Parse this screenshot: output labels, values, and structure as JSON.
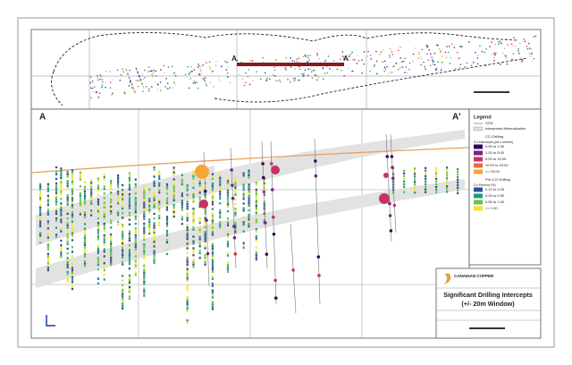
{
  "plan_view": {
    "section_start": "A",
    "section_end": "A'"
  },
  "section": {
    "left_label": "A",
    "right_label": "A'"
  },
  "legend": {
    "title": "Legend",
    "items": [
      "STM",
      "Interpreted Mineralization"
    ],
    "cci": {
      "title": "CCI Drilling",
      "subtitle": "Cu Intercepts (pct x meters)",
      "classes": [
        {
          "label": "0.00 to 1.00",
          "color": "#2d0a5e"
        },
        {
          "label": "1.00 to 5.00",
          "color": "#7b2382"
        },
        {
          "label": "5.00 to 10.00",
          "color": "#c8325e"
        },
        {
          "label": "10.00 to 15.00",
          "color": "#ef6a3c"
        },
        {
          "label": ">= 15.00",
          "color": "#f7a43a"
        }
      ]
    },
    "pre_cci": {
      "title": "Pre-CCI Drilling",
      "subtitle": "Cu Percent (%)",
      "classes": [
        {
          "label": "0.10 to 0.25",
          "color": "#34508c"
        },
        {
          "label": "0.25 to 0.50",
          "color": "#1f9a8a"
        },
        {
          "label": "0.50 to 1.00",
          "color": "#6cc24a"
        },
        {
          "label": ">= 1.00",
          "color": "#f2e52b"
        }
      ]
    }
  },
  "title_block": {
    "company": "CANADIAN COPPER",
    "title": "Significant Drilling Intercepts",
    "subtitle": "(+/- 20m Window)"
  }
}
